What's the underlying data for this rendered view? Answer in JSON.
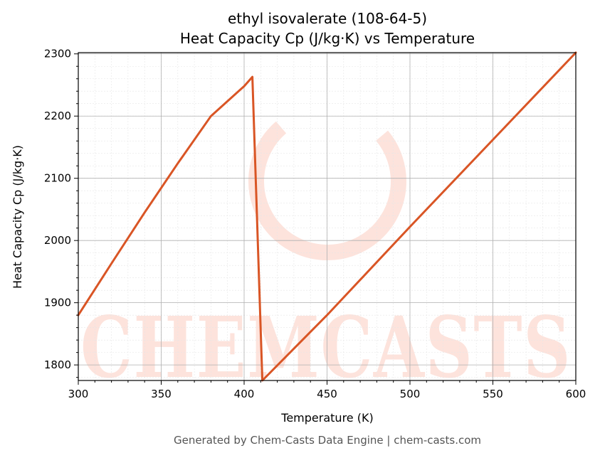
{
  "chart_data": {
    "type": "line",
    "title_line1": "ethyl isovalerate (108-64-5)",
    "title_line2": "Heat Capacity Cp (J/kg·K) vs Temperature",
    "xlabel": "Temperature (K)",
    "ylabel": "Heat Capacity Cp (J/kg·K)",
    "xlim": [
      300,
      600
    ],
    "ylim": [
      1775,
      2302
    ],
    "x_ticks": [
      300,
      350,
      400,
      450,
      500,
      550,
      600
    ],
    "y_ticks": [
      1800,
      1900,
      2000,
      2100,
      2200,
      2300
    ],
    "grid": true,
    "line_color": "#d95525",
    "series": [
      {
        "x": [
          300,
          320,
          340,
          360,
          380,
          400,
          405,
          411,
          450,
          500,
          550,
          600
        ],
        "y": [
          1880,
          1963,
          2045,
          2124,
          2200,
          2248,
          2263,
          1775,
          1880,
          2022,
          2162,
          2302
        ]
      }
    ]
  },
  "watermark": {
    "text": "CHEMCASTS",
    "color": "#fde3dc"
  },
  "footer": "Generated by Chem-Casts Data Engine | chem-casts.com"
}
